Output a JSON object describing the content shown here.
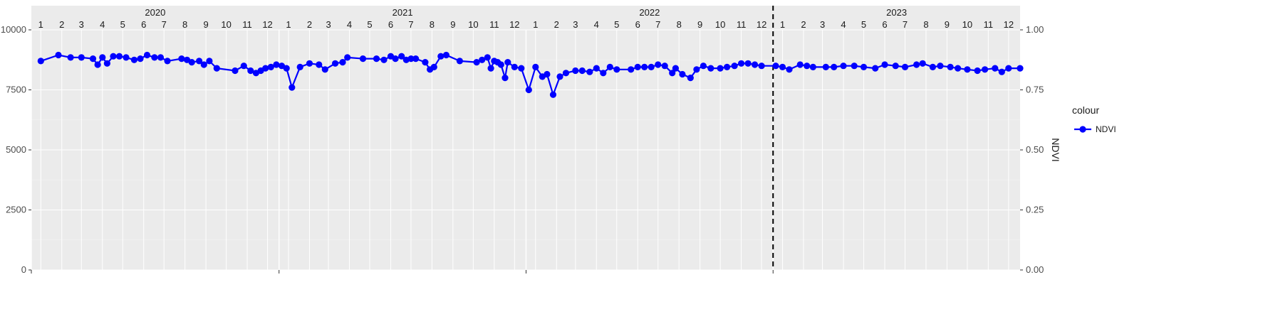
{
  "chart_data": {
    "type": "line",
    "title": "",
    "xlabel": "",
    "ylabel_left": "",
    "ylabel_right": "NDVI",
    "ylim_left": [
      0,
      10000
    ],
    "ylim_right": [
      0,
      1
    ],
    "y_ticks_left": [
      "0",
      "2500",
      "5000",
      "7500",
      "10000"
    ],
    "y_ticks_right": [
      "0.00",
      "0.25",
      "0.50",
      "0.75",
      "1.00"
    ],
    "years": [
      "2020",
      "2021",
      "2022",
      "2023"
    ],
    "months": [
      "1",
      "2",
      "3",
      "4",
      "5",
      "6",
      "7",
      "8",
      "9",
      "10",
      "11",
      "12"
    ],
    "x_range": [
      "2020-01-01",
      "2024-01-01"
    ],
    "vline_date": "2023-01-01",
    "grid": true,
    "legend_title": "colour",
    "legend_position": "right",
    "series": [
      {
        "name": "NDVI",
        "axis": "right",
        "color": "#0000ff",
        "points": [
          [
            "2020-01-15",
            0.87
          ],
          [
            "2020-02-10",
            0.895
          ],
          [
            "2020-02-28",
            0.885
          ],
          [
            "2020-03-15",
            0.885
          ],
          [
            "2020-04-01",
            0.88
          ],
          [
            "2020-04-08",
            0.855
          ],
          [
            "2020-04-15",
            0.885
          ],
          [
            "2020-04-22",
            0.86
          ],
          [
            "2020-05-01",
            0.89
          ],
          [
            "2020-05-10",
            0.89
          ],
          [
            "2020-05-20",
            0.885
          ],
          [
            "2020-06-01",
            0.875
          ],
          [
            "2020-06-10",
            0.88
          ],
          [
            "2020-06-20",
            0.895
          ],
          [
            "2020-07-01",
            0.885
          ],
          [
            "2020-07-10",
            0.885
          ],
          [
            "2020-07-20",
            0.87
          ],
          [
            "2020-08-10",
            0.88
          ],
          [
            "2020-08-18",
            0.875
          ],
          [
            "2020-08-25",
            0.865
          ],
          [
            "2020-09-05",
            0.87
          ],
          [
            "2020-09-12",
            0.855
          ],
          [
            "2020-09-20",
            0.87
          ],
          [
            "2020-10-01",
            0.84
          ],
          [
            "2020-10-28",
            0.83
          ],
          [
            "2020-11-10",
            0.85
          ],
          [
            "2020-11-20",
            0.83
          ],
          [
            "2020-11-28",
            0.82
          ],
          [
            "2020-12-05",
            0.83
          ],
          [
            "2020-12-12",
            0.84
          ],
          [
            "2020-12-20",
            0.845
          ],
          [
            "2020-12-28",
            0.855
          ],
          [
            "2021-01-05",
            0.85
          ],
          [
            "2021-01-12",
            0.84
          ],
          [
            "2021-01-20",
            0.76
          ],
          [
            "2021-02-01",
            0.845
          ],
          [
            "2021-02-15",
            0.86
          ],
          [
            "2021-03-01",
            0.855
          ],
          [
            "2021-03-10",
            0.835
          ],
          [
            "2021-03-25",
            0.86
          ],
          [
            "2021-04-05",
            0.865
          ],
          [
            "2021-04-12",
            0.885
          ],
          [
            "2021-05-05",
            0.88
          ],
          [
            "2021-05-25",
            0.88
          ],
          [
            "2021-06-05",
            0.875
          ],
          [
            "2021-06-15",
            0.89
          ],
          [
            "2021-06-22",
            0.88
          ],
          [
            "2021-07-01",
            0.89
          ],
          [
            "2021-07-08",
            0.875
          ],
          [
            "2021-07-15",
            0.88
          ],
          [
            "2021-07-22",
            0.88
          ],
          [
            "2021-08-05",
            0.865
          ],
          [
            "2021-08-12",
            0.835
          ],
          [
            "2021-08-18",
            0.845
          ],
          [
            "2021-08-28",
            0.89
          ],
          [
            "2021-09-05",
            0.895
          ],
          [
            "2021-09-25",
            0.87
          ],
          [
            "2021-10-20",
            0.865
          ],
          [
            "2021-10-28",
            0.875
          ],
          [
            "2021-11-05",
            0.885
          ],
          [
            "2021-11-10",
            0.84
          ],
          [
            "2021-11-15",
            0.87
          ],
          [
            "2021-11-20",
            0.865
          ],
          [
            "2021-11-25",
            0.855
          ],
          [
            "2021-12-01",
            0.8
          ],
          [
            "2021-12-05",
            0.865
          ],
          [
            "2021-12-15",
            0.845
          ],
          [
            "2021-12-25",
            0.84
          ],
          [
            "2022-01-05",
            0.75
          ],
          [
            "2022-01-15",
            0.845
          ],
          [
            "2022-01-25",
            0.805
          ],
          [
            "2022-02-01",
            0.815
          ],
          [
            "2022-02-10",
            0.73
          ],
          [
            "2022-02-20",
            0.805
          ],
          [
            "2022-03-01",
            0.82
          ],
          [
            "2022-03-15",
            0.83
          ],
          [
            "2022-03-25",
            0.83
          ],
          [
            "2022-04-05",
            0.825
          ],
          [
            "2022-04-15",
            0.84
          ],
          [
            "2022-04-25",
            0.82
          ],
          [
            "2022-05-05",
            0.845
          ],
          [
            "2022-05-15",
            0.835
          ],
          [
            "2022-06-05",
            0.835
          ],
          [
            "2022-06-15",
            0.845
          ],
          [
            "2022-06-25",
            0.845
          ],
          [
            "2022-07-05",
            0.845
          ],
          [
            "2022-07-15",
            0.855
          ],
          [
            "2022-07-25",
            0.85
          ],
          [
            "2022-08-05",
            0.82
          ],
          [
            "2022-08-10",
            0.84
          ],
          [
            "2022-08-20",
            0.815
          ],
          [
            "2022-09-01",
            0.8
          ],
          [
            "2022-09-10",
            0.835
          ],
          [
            "2022-09-20",
            0.85
          ],
          [
            "2022-10-01",
            0.84
          ],
          [
            "2022-10-15",
            0.84
          ],
          [
            "2022-10-25",
            0.845
          ],
          [
            "2022-11-05",
            0.85
          ],
          [
            "2022-11-15",
            0.86
          ],
          [
            "2022-11-25",
            0.86
          ],
          [
            "2022-12-05",
            0.855
          ],
          [
            "2022-12-15",
            0.85
          ],
          [
            "2023-01-05",
            0.85
          ],
          [
            "2023-01-15",
            0.845
          ],
          [
            "2023-01-25",
            0.835
          ],
          [
            "2023-02-10",
            0.855
          ],
          [
            "2023-02-20",
            0.85
          ],
          [
            "2023-03-01",
            0.845
          ],
          [
            "2023-03-20",
            0.845
          ],
          [
            "2023-04-01",
            0.845
          ],
          [
            "2023-04-15",
            0.85
          ],
          [
            "2023-05-01",
            0.85
          ],
          [
            "2023-05-15",
            0.845
          ],
          [
            "2023-06-01",
            0.84
          ],
          [
            "2023-06-15",
            0.855
          ],
          [
            "2023-07-01",
            0.85
          ],
          [
            "2023-07-15",
            0.845
          ],
          [
            "2023-08-01",
            0.855
          ],
          [
            "2023-08-10",
            0.86
          ],
          [
            "2023-08-25",
            0.845
          ],
          [
            "2023-09-05",
            0.85
          ],
          [
            "2023-09-20",
            0.845
          ],
          [
            "2023-10-01",
            0.84
          ],
          [
            "2023-10-15",
            0.835
          ],
          [
            "2023-10-30",
            0.83
          ],
          [
            "2023-11-10",
            0.835
          ],
          [
            "2023-11-25",
            0.84
          ],
          [
            "2023-12-05",
            0.825
          ],
          [
            "2023-12-15",
            0.84
          ],
          [
            "2024-01-01",
            0.84
          ]
        ]
      }
    ]
  }
}
